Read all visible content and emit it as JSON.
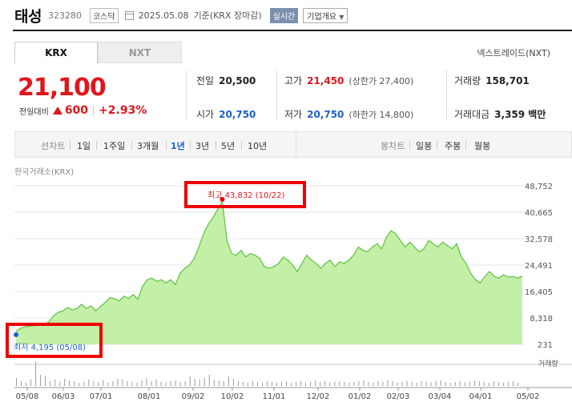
{
  "header": {
    "company": "태성",
    "code": "323280",
    "market": "코스닥",
    "date": "2025.05.08",
    "basis": "기준(KRX 장마감)",
    "realtime": "실시간",
    "corp_info": "기업개요"
  },
  "tabs": {
    "krx": "KRX",
    "nxt": "NXT"
  },
  "nextrade": "넥스트레이드(NXT)",
  "price": {
    "current": "21,100",
    "change_label": "전일대비",
    "change": "600",
    "change_pct": "+2.93%"
  },
  "stats": {
    "prev_close_label": "전일",
    "prev_close": "20,500",
    "high_label": "고가",
    "high": "21,450",
    "upper_limit": "(상한가 27,400)",
    "volume_label": "거래량",
    "volume": "158,701",
    "open_label": "시가",
    "open": "20,750",
    "low_label": "저가",
    "low": "20,750",
    "lower_limit": "(하한가 14,800)",
    "amount_label": "거래대금",
    "amount": "3,359 백만"
  },
  "period_bar": {
    "line_chart": "선차트",
    "periods": [
      "1일",
      "1주일",
      "3개월",
      "1년",
      "3년",
      "5년",
      "10년"
    ],
    "selected": "1년",
    "candle_chart": "봉차트",
    "candles": [
      "일봉",
      "주봉",
      "월봉"
    ]
  },
  "exchange_label": "한국거래소(KRX)",
  "annotations": {
    "high": "최고 43,832 (10/22)",
    "low": "최저 4,195 (05/08)"
  },
  "volume_label": "거래량",
  "colors": {
    "up": "#e0161b",
    "down": "#1f61c9",
    "line": "#5bc23e",
    "fill": "#b6ea96"
  },
  "chart_data": {
    "type": "area",
    "y_ticks": [
      "48,752",
      "40,665",
      "32,578",
      "24,491",
      "16,405",
      "8,318",
      "231"
    ],
    "x_ticks": [
      "05/08",
      "06/03",
      "07/01",
      "08/01",
      "09/02",
      "10/02",
      "11/01",
      "12/02",
      "01/02",
      "02/03",
      "03/04",
      "04/01",
      "05/02"
    ],
    "ylim": [
      231,
      48752
    ],
    "grid": true,
    "series": [
      {
        "values": [
          4195,
          5200,
          5600,
          5800,
          6000,
          6200,
          6400,
          7100,
          9000,
          10000,
          10500,
          11500,
          10800,
          11200,
          12500,
          11200,
          12000,
          10500,
          11800,
          13000,
          14500,
          14200,
          13500,
          15000,
          14200,
          15500,
          14000,
          18000,
          20000,
          20500,
          19500,
          20000,
          19000,
          20000,
          18500,
          22000,
          23500,
          24500,
          26500,
          30000,
          34000,
          37000,
          39000,
          41500,
          43832,
          32000,
          28000,
          27500,
          29000,
          27000,
          28000,
          27500,
          26500,
          24000,
          23500,
          24000,
          25000,
          27000,
          26000,
          24500,
          22500,
          25000,
          27500,
          26000,
          25000,
          23500,
          25000,
          26000,
          24000,
          25500,
          25000,
          26000,
          27500,
          30000,
          29000,
          28500,
          30000,
          31000,
          29500,
          33000,
          35000,
          34000,
          32000,
          30000,
          31500,
          30000,
          28500,
          29500,
          32000,
          31000,
          30000,
          31500,
          30500,
          29500,
          31000,
          27000,
          25000,
          22000,
          20000,
          19000,
          21000,
          22500,
          21000,
          20500,
          21500,
          20800,
          21000,
          20500,
          21100
        ]
      }
    ]
  }
}
